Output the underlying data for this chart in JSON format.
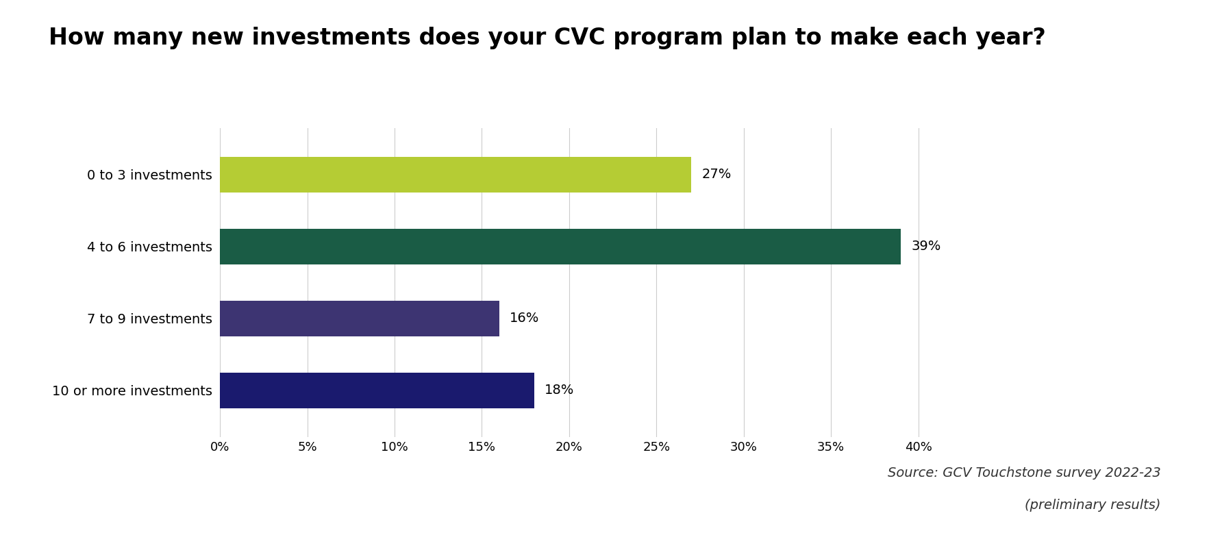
{
  "title": "How many new investments does your CVC program plan to make each year?",
  "categories": [
    "0 to 3 investments",
    "4 to 6 investments",
    "7 to 9 investments",
    "10 or more investments"
  ],
  "values": [
    27,
    39,
    16,
    18
  ],
  "bar_colors": [
    "#b5cc34",
    "#1a5c45",
    "#3d3472",
    "#1a1a6e"
  ],
  "labels": [
    "27%",
    "39%",
    "16%",
    "18%"
  ],
  "xlim": [
    0,
    42
  ],
  "xticks": [
    0,
    5,
    10,
    15,
    20,
    25,
    30,
    35,
    40
  ],
  "xticklabels": [
    "0%",
    "5%",
    "10%",
    "15%",
    "20%",
    "25%",
    "30%",
    "35%",
    "40%"
  ],
  "source_line1": "Source: GCV Touchstone survey 2022-23",
  "source_line2": "(preliminary results)",
  "background_color": "#ffffff",
  "title_fontsize": 24,
  "label_fontsize": 14,
  "tick_fontsize": 13,
  "bar_height": 0.5,
  "source_fontsize": 14
}
